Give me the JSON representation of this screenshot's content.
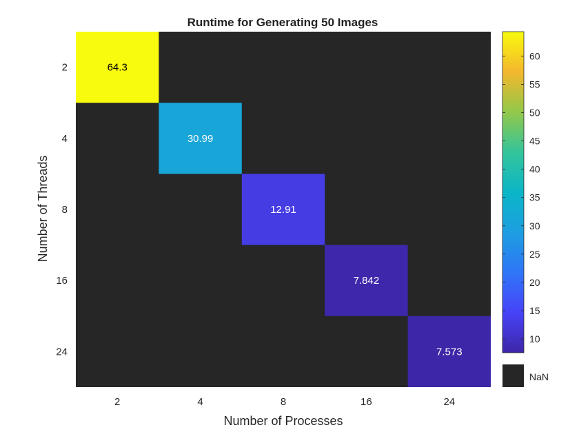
{
  "chart_data": {
    "type": "heatmap",
    "title": "Runtime for Generating 50 Images",
    "xlabel": "Number of Processes",
    "ylabel": "Number of Threads",
    "x_categories": [
      "2",
      "4",
      "8",
      "16",
      "24"
    ],
    "y_categories": [
      "2",
      "4",
      "8",
      "16",
      "24"
    ],
    "values": [
      [
        64.3,
        null,
        null,
        null,
        null
      ],
      [
        null,
        30.99,
        null,
        null,
        null
      ],
      [
        null,
        null,
        12.91,
        null,
        null
      ],
      [
        null,
        null,
        null,
        7.842,
        null
      ],
      [
        null,
        null,
        null,
        null,
        7.573
      ]
    ],
    "cell_labels": [
      [
        "64.3",
        "",
        "",
        "",
        ""
      ],
      [
        "",
        "30.99",
        "",
        "",
        ""
      ],
      [
        "",
        "",
        "12.91",
        "",
        ""
      ],
      [
        "",
        "",
        "",
        "7.842",
        ""
      ],
      [
        "",
        "",
        "",
        "",
        "7.573"
      ]
    ],
    "colormap": "parula",
    "color_range": [
      7.573,
      64.3
    ],
    "colorbar_ticks": [
      10,
      15,
      20,
      25,
      30,
      35,
      40,
      45,
      50,
      55,
      60
    ],
    "colorbar_tick_labels": [
      "10",
      "15",
      "20",
      "25",
      "30",
      "35",
      "40",
      "45",
      "50",
      "55",
      "60"
    ],
    "missing_label": "NaN",
    "missing_color": "#262626"
  }
}
